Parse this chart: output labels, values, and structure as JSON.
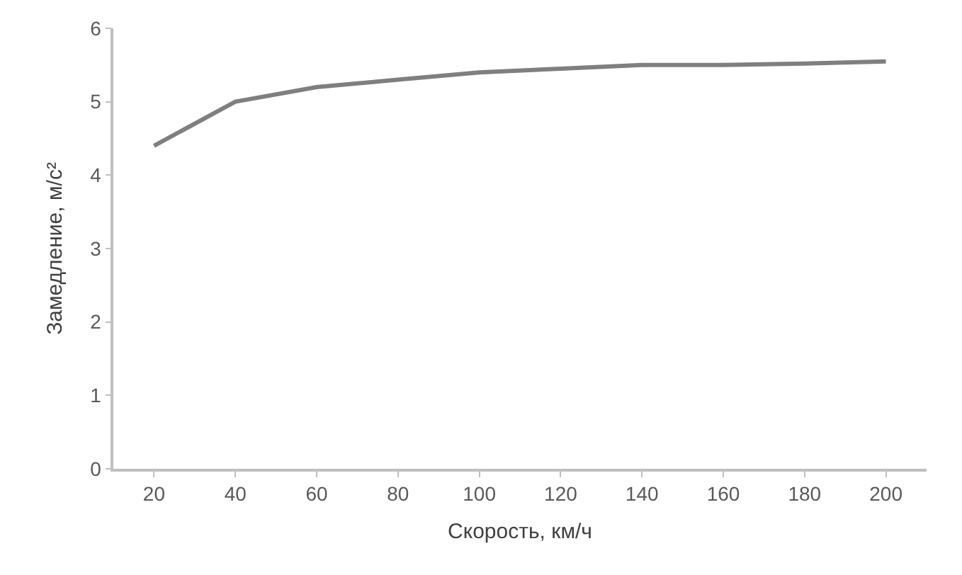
{
  "chart_data": {
    "type": "line",
    "xlabel": "Скорость, км/ч",
    "ylabel": "Замедление, м/с²",
    "categories": [
      "20",
      "40",
      "60",
      "80",
      "100",
      "120",
      "140",
      "160",
      "180",
      "200"
    ],
    "series": [
      {
        "color": "#7f7f7f",
        "values": [
          4.4,
          5.0,
          5.2,
          5.3,
          5.4,
          5.45,
          5.5,
          5.5,
          5.52,
          5.55
        ]
      }
    ],
    "ylim": [
      0,
      6
    ],
    "yticks": [
      0,
      1,
      2,
      3,
      4,
      5,
      6
    ],
    "grid": false,
    "marker": "none",
    "line_style": "solid"
  }
}
